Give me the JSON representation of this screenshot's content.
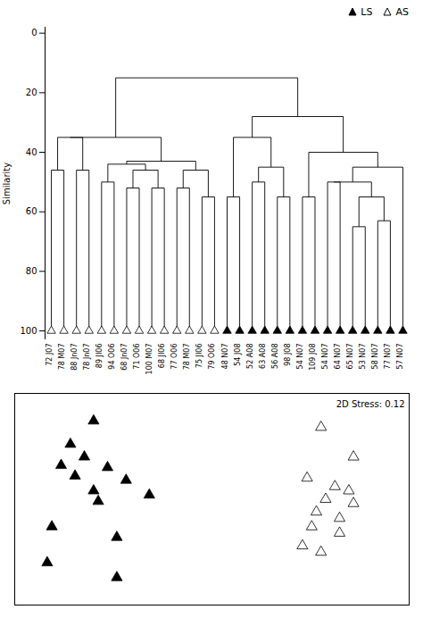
{
  "chart_data": [
    {
      "type": "dendrogram",
      "ylabel": "Similarity",
      "categories": [
        "72 J07",
        "78 M07",
        "88 Jn07",
        "78 Jn07",
        "89 JI06",
        "94 O06",
        "68 Jn07",
        "71 O06",
        "100 M07",
        "68 JI06",
        "77 O06",
        "78 M07",
        "75 JI06",
        "79 O06",
        "48 N07",
        "54 J08",
        "52 A08",
        "63 A08",
        "56 A08",
        "98 J08",
        "54 N07",
        "109 J08",
        "54 N07",
        "64 N07",
        "65 N07",
        "53 N07",
        "58 N07",
        "77 N07",
        "57 N07"
      ],
      "groups": [
        "AS",
        "AS",
        "AS",
        "AS",
        "AS",
        "AS",
        "AS",
        "AS",
        "AS",
        "AS",
        "AS",
        "AS",
        "AS",
        "AS",
        "LS",
        "LS",
        "LS",
        "LS",
        "LS",
        "LS",
        "LS",
        "LS",
        "LS",
        "LS",
        "LS",
        "LS",
        "LS",
        "LS",
        "LS"
      ],
      "leaf_similarity": 100,
      "tree": {
        "similarity": 15,
        "children": [
          {
            "similarity": 35,
            "children": [
              {
                "similarity": 35,
                "children": [
                  {
                    "similarity": 46,
                    "children": [
                      0,
                      1
                    ]
                  },
                  {
                    "similarity": 46,
                    "children": [
                      2,
                      3
                    ]
                  }
                ]
              },
              {
                "similarity": 43,
                "children": [
                  {
                    "similarity": 44,
                    "children": [
                      {
                        "similarity": 50,
                        "children": [
                          4,
                          5
                        ]
                      },
                      {
                        "similarity": 46,
                        "children": [
                          {
                            "similarity": 52,
                            "children": [
                              6,
                              7
                            ]
                          },
                          {
                            "similarity": 52,
                            "children": [
                              8,
                              9
                            ]
                          }
                        ]
                      }
                    ]
                  },
                  {
                    "similarity": 46,
                    "children": [
                      {
                        "similarity": 52,
                        "children": [
                          10,
                          11
                        ]
                      },
                      {
                        "similarity": 55,
                        "children": [
                          12,
                          13
                        ]
                      }
                    ]
                  }
                ]
              }
            ]
          },
          {
            "similarity": 28,
            "children": [
              {
                "similarity": 35,
                "children": [
                  {
                    "similarity": 55,
                    "children": [
                      14,
                      15
                    ]
                  },
                  {
                    "similarity": 45,
                    "children": [
                      {
                        "similarity": 50,
                        "children": [
                          16,
                          17
                        ]
                      },
                      {
                        "similarity": 55,
                        "children": [
                          18,
                          19
                        ]
                      }
                    ]
                  }
                ]
              },
              {
                "similarity": 40,
                "children": [
                  {
                    "similarity": 55,
                    "children": [
                      20,
                      21
                    ]
                  },
                  {
                    "similarity": 45,
                    "children": [
                      {
                        "similarity": 50,
                        "children": [
                          {
                            "similarity": 50,
                            "children": [
                              22,
                              23
                            ]
                          },
                          {
                            "similarity": 55,
                            "children": [
                              {
                                "similarity": 65,
                                "children": [
                                  24,
                                  25
                                ]
                              },
                              {
                                "similarity": 63,
                                "children": [
                                  26,
                                  27
                                ]
                              }
                            ]
                          }
                        ]
                      },
                      28
                    ]
                  }
                ]
              }
            ]
          }
        ]
      },
      "ylim": [
        103,
        -2
      ],
      "yticks": [
        0,
        20,
        40,
        60,
        80,
        100
      ],
      "legend": "upper right",
      "series": [
        {
          "name": "LS",
          "color": "black",
          "marker": "triangle"
        },
        {
          "name": "AS",
          "color": "white",
          "marker": "triangle"
        }
      ]
    },
    {
      "type": "scatter",
      "annotation": "2D Stress: 0.12",
      "xlim": [
        0,
        0.85
      ],
      "ylim": [
        0,
        1.0
      ],
      "tick_labels": false,
      "series": [
        {
          "name": "LS",
          "color": "black",
          "marker": "triangle",
          "x": [
            0.17,
            0.12,
            0.15,
            0.2,
            0.1,
            0.13,
            0.24,
            0.17,
            0.29,
            0.18,
            0.08,
            0.22,
            0.07,
            0.22
          ],
          "y": [
            0.87,
            0.76,
            0.7,
            0.65,
            0.66,
            0.61,
            0.59,
            0.54,
            0.52,
            0.49,
            0.37,
            0.32,
            0.2,
            0.13
          ]
        },
        {
          "name": "AS",
          "color": "white",
          "marker": "triangle",
          "x": [
            0.66,
            0.63,
            0.69,
            0.72,
            0.67,
            0.73,
            0.65,
            0.7,
            0.64,
            0.7,
            0.62,
            0.66,
            0.73
          ],
          "y": [
            0.84,
            0.6,
            0.56,
            0.54,
            0.5,
            0.48,
            0.44,
            0.41,
            0.37,
            0.34,
            0.28,
            0.25,
            0.7
          ]
        }
      ]
    }
  ]
}
